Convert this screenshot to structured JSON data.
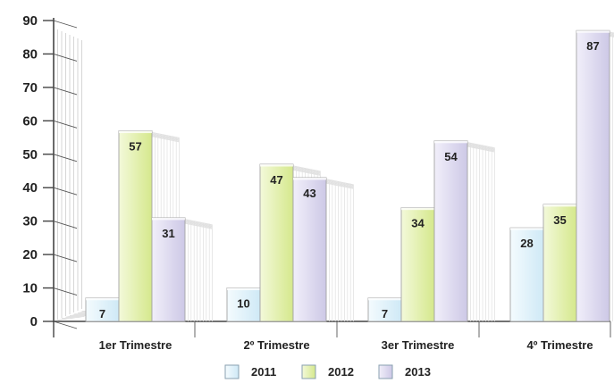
{
  "chart_data": {
    "type": "bar",
    "categories": [
      "1er Trimestre",
      "2º Trimestre",
      "3er Trimestre",
      "4º Trimestre"
    ],
    "series": [
      {
        "name": "2011",
        "values": [
          7,
          10,
          7,
          28
        ]
      },
      {
        "name": "2012",
        "values": [
          57,
          47,
          34,
          35
        ]
      },
      {
        "name": "2013",
        "values": [
          31,
          43,
          54,
          87
        ]
      }
    ],
    "ylim": [
      0,
      90
    ],
    "yticks": [
      0,
      10,
      20,
      30,
      40,
      50,
      60,
      70,
      80,
      90
    ],
    "legend": "bottom",
    "grid": false,
    "title": "",
    "xlabel": "",
    "ylabel": "",
    "colors": {
      "2011": "#e4f4fb",
      "2012": "#e6f2b6",
      "2013": "#e2dff0",
      "axis": "#555555"
    }
  }
}
